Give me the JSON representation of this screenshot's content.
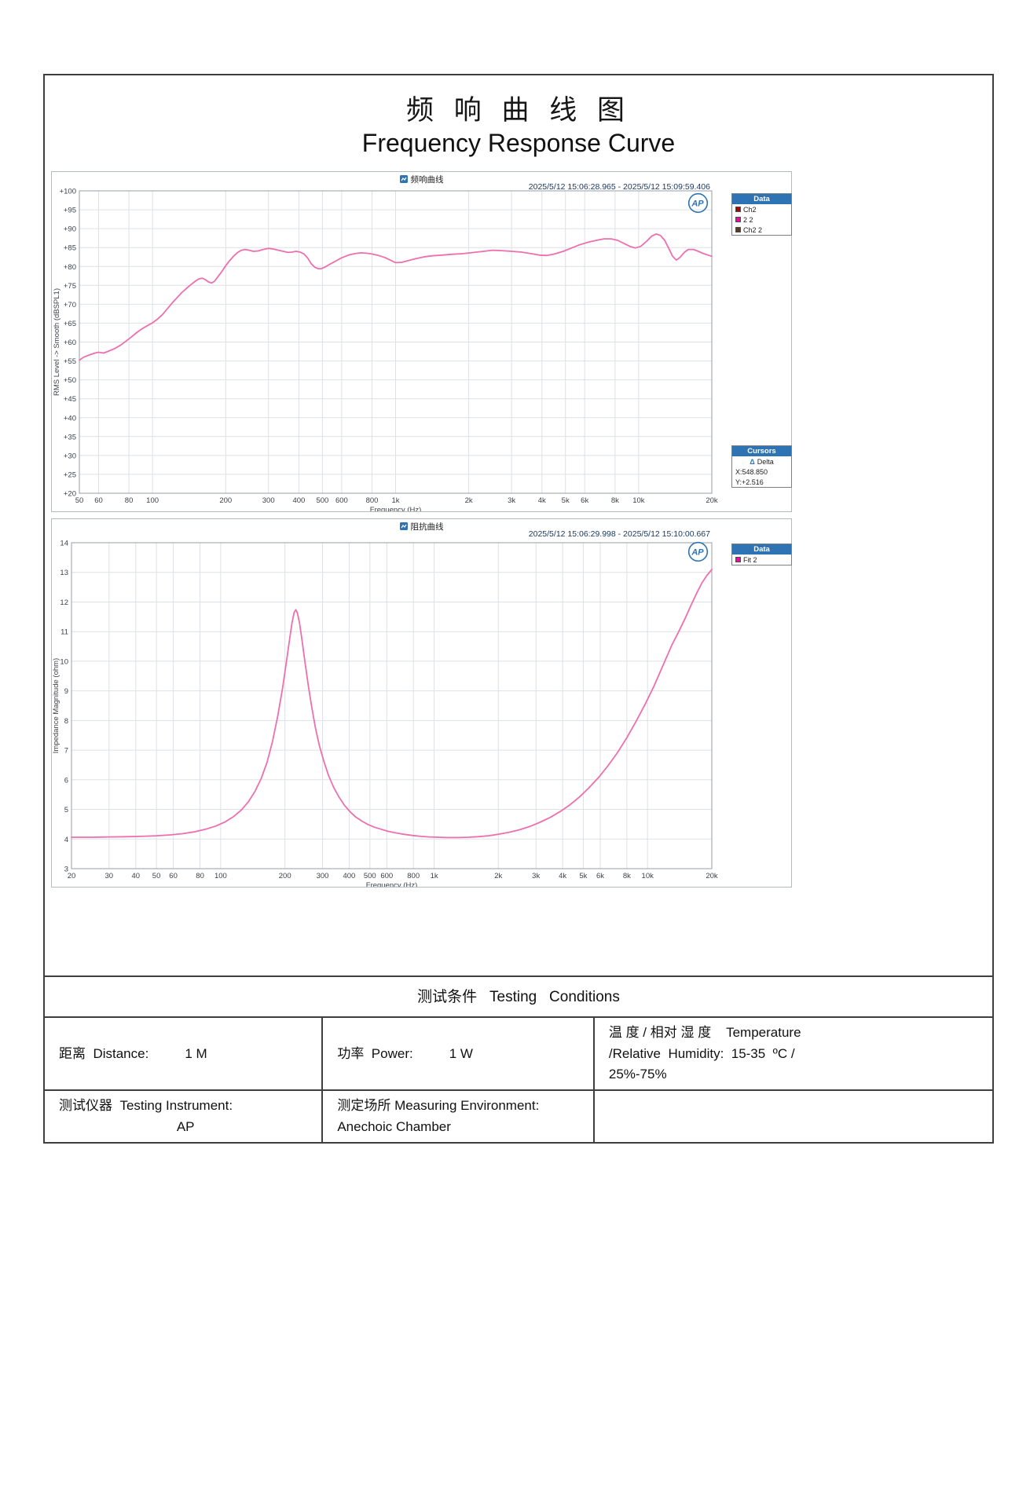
{
  "doc": {
    "title_zh": "频 响 曲 线 图",
    "title_en": "Frequency Response Curve"
  },
  "chart_data": [
    {
      "type": "line",
      "window_title": "频响曲线",
      "timestamp": "2025/5/12 15:06:28.965 - 2025/5/12 15:09:59.406",
      "logo_text": "AP",
      "xlabel": "Frequency (Hz)",
      "ylabel": "RMS Level -> Smooth (dBSPL1)",
      "xscale": "log",
      "xlim": [
        50,
        20000
      ],
      "ylim": [
        20,
        100
      ],
      "ystep": 5,
      "y_prefix_plus": true,
      "grid": true,
      "xticks": [
        [
          50,
          "50"
        ],
        [
          60,
          "60"
        ],
        [
          80,
          "80"
        ],
        [
          100,
          "100"
        ],
        [
          200,
          "200"
        ],
        [
          300,
          "300"
        ],
        [
          400,
          "400"
        ],
        [
          500,
          "500"
        ],
        [
          600,
          "600"
        ],
        [
          800,
          "800"
        ],
        [
          1000,
          "1k"
        ],
        [
          2000,
          "2k"
        ],
        [
          3000,
          "3k"
        ],
        [
          4000,
          "4k"
        ],
        [
          5000,
          "5k"
        ],
        [
          6000,
          "6k"
        ],
        [
          8000,
          "8k"
        ],
        [
          10000,
          "10k"
        ],
        [
          20000,
          "20k"
        ]
      ],
      "legend": {
        "title": "Data",
        "position": "right-top",
        "entries": [
          {
            "label": "Ch2",
            "color": "#b00000"
          },
          {
            "label": "2 2",
            "color": "#ff00a0"
          },
          {
            "label": "Ch2 2",
            "color": "#5f3a18"
          }
        ]
      },
      "cursors": {
        "title": "Cursors",
        "delta": "Delta",
        "x": "X:548.850",
        "y": "Y:+2.516"
      },
      "series": [
        {
          "name": "2 2",
          "color": "#ee6fae",
          "points": [
            [
              50,
              55.2
            ],
            [
              52,
              56.0
            ],
            [
              55,
              56.6
            ],
            [
              58,
              57.1
            ],
            [
              60,
              57.3
            ],
            [
              63,
              57.1
            ],
            [
              66,
              57.6
            ],
            [
              70,
              58.3
            ],
            [
              74,
              59.2
            ],
            [
              78,
              60.3
            ],
            [
              82,
              61.4
            ],
            [
              86,
              62.5
            ],
            [
              90,
              63.4
            ],
            [
              95,
              64.3
            ],
            [
              100,
              65.1
            ],
            [
              105,
              66.1
            ],
            [
              110,
              67.3
            ],
            [
              115,
              68.8
            ],
            [
              120,
              70.2
            ],
            [
              126,
              71.7
            ],
            [
              132,
              73.1
            ],
            [
              138,
              74.2
            ],
            [
              144,
              75.2
            ],
            [
              150,
              76.1
            ],
            [
              155,
              76.7
            ],
            [
              160,
              76.9
            ],
            [
              165,
              76.5
            ],
            [
              170,
              75.9
            ],
            [
              175,
              75.6
            ],
            [
              180,
              76.1
            ],
            [
              186,
              77.3
            ],
            [
              193,
              78.7
            ],
            [
              200,
              80.2
            ],
            [
              208,
              81.6
            ],
            [
              216,
              82.8
            ],
            [
              224,
              83.7
            ],
            [
              232,
              84.3
            ],
            [
              240,
              84.5
            ],
            [
              250,
              84.3
            ],
            [
              260,
              84.0
            ],
            [
              272,
              84.1
            ],
            [
              285,
              84.5
            ],
            [
              300,
              84.8
            ],
            [
              315,
              84.6
            ],
            [
              330,
              84.3
            ],
            [
              345,
              84.0
            ],
            [
              360,
              83.7
            ],
            [
              375,
              83.8
            ],
            [
              390,
              84.0
            ],
            [
              405,
              83.8
            ],
            [
              420,
              83.3
            ],
            [
              435,
              82.2
            ],
            [
              450,
              80.7
            ],
            [
              465,
              79.8
            ],
            [
              480,
              79.4
            ],
            [
              495,
              79.4
            ],
            [
              515,
              79.9
            ],
            [
              540,
              80.7
            ],
            [
              570,
              81.5
            ],
            [
              600,
              82.3
            ],
            [
              640,
              83.0
            ],
            [
              680,
              83.4
            ],
            [
              720,
              83.6
            ],
            [
              760,
              83.5
            ],
            [
              800,
              83.3
            ],
            [
              850,
              82.9
            ],
            [
              900,
              82.4
            ],
            [
              950,
              81.7
            ],
            [
              1000,
              81.0
            ],
            [
              1060,
              81.1
            ],
            [
              1120,
              81.5
            ],
            [
              1200,
              82.0
            ],
            [
              1300,
              82.5
            ],
            [
              1400,
              82.8
            ],
            [
              1550,
              83.0
            ],
            [
              1700,
              83.2
            ],
            [
              1900,
              83.4
            ],
            [
              2100,
              83.7
            ],
            [
              2300,
              84.0
            ],
            [
              2500,
              84.3
            ],
            [
              2700,
              84.2
            ],
            [
              3000,
              84.0
            ],
            [
              3300,
              83.8
            ],
            [
              3600,
              83.4
            ],
            [
              3900,
              83.0
            ],
            [
              4200,
              82.9
            ],
            [
              4500,
              83.3
            ],
            [
              4900,
              84.0
            ],
            [
              5300,
              84.9
            ],
            [
              5700,
              85.7
            ],
            [
              6200,
              86.4
            ],
            [
              6700,
              86.9
            ],
            [
              7200,
              87.3
            ],
            [
              7700,
              87.3
            ],
            [
              8200,
              86.9
            ],
            [
              8700,
              86.1
            ],
            [
              9200,
              85.3
            ],
            [
              9700,
              84.9
            ],
            [
              10200,
              85.3
            ],
            [
              10800,
              86.7
            ],
            [
              11300,
              88.0
            ],
            [
              11800,
              88.6
            ],
            [
              12300,
              88.2
            ],
            [
              12800,
              86.9
            ],
            [
              13300,
              84.8
            ],
            [
              13800,
              82.7
            ],
            [
              14300,
              81.7
            ],
            [
              14800,
              82.4
            ],
            [
              15400,
              83.7
            ],
            [
              16000,
              84.5
            ],
            [
              16800,
              84.5
            ],
            [
              17600,
              84.0
            ],
            [
              18500,
              83.4
            ],
            [
              19300,
              83.0
            ],
            [
              20000,
              82.7
            ]
          ]
        }
      ]
    },
    {
      "type": "line",
      "window_title": "阻抗曲线",
      "timestamp": "2025/5/12 15:06:29.998 - 2025/5/12 15:10:00.667",
      "logo_text": "AP",
      "xlabel": "Frequency (Hz)",
      "ylabel": "Impedance Magnitude (ohm)",
      "xscale": "log",
      "xlim": [
        20,
        20000
      ],
      "ylim": [
        3,
        14
      ],
      "ystep": 1,
      "y_prefix_plus": false,
      "grid": true,
      "xticks": [
        [
          20,
          "20"
        ],
        [
          30,
          "30"
        ],
        [
          40,
          "40"
        ],
        [
          50,
          "50"
        ],
        [
          60,
          "60"
        ],
        [
          80,
          "80"
        ],
        [
          100,
          "100"
        ],
        [
          200,
          "200"
        ],
        [
          300,
          "300"
        ],
        [
          400,
          "400"
        ],
        [
          500,
          "500"
        ],
        [
          600,
          "600"
        ],
        [
          800,
          "800"
        ],
        [
          1000,
          "1k"
        ],
        [
          2000,
          "2k"
        ],
        [
          3000,
          "3k"
        ],
        [
          4000,
          "4k"
        ],
        [
          5000,
          "5k"
        ],
        [
          6000,
          "6k"
        ],
        [
          8000,
          "8k"
        ],
        [
          10000,
          "10k"
        ],
        [
          20000,
          "20k"
        ]
      ],
      "legend": {
        "title": "Data",
        "position": "right-top",
        "entries": [
          {
            "label": "Fit 2",
            "color": "#ff00a0"
          }
        ]
      },
      "series": [
        {
          "name": "Fit 2",
          "color": "#ee6fae",
          "points": [
            [
              20,
              4.06
            ],
            [
              25,
              4.06
            ],
            [
              30,
              4.07
            ],
            [
              36,
              4.08
            ],
            [
              42,
              4.09
            ],
            [
              50,
              4.11
            ],
            [
              58,
              4.14
            ],
            [
              66,
              4.18
            ],
            [
              75,
              4.24
            ],
            [
              85,
              4.33
            ],
            [
              95,
              4.44
            ],
            [
              105,
              4.58
            ],
            [
              115,
              4.76
            ],
            [
              125,
              4.98
            ],
            [
              135,
              5.26
            ],
            [
              145,
              5.62
            ],
            [
              155,
              6.05
            ],
            [
              165,
              6.6
            ],
            [
              175,
              7.3
            ],
            [
              185,
              8.15
            ],
            [
              195,
              9.1
            ],
            [
              203,
              9.95
            ],
            [
              210,
              10.7
            ],
            [
              216,
              11.3
            ],
            [
              221,
              11.65
            ],
            [
              225,
              11.74
            ],
            [
              229,
              11.62
            ],
            [
              234,
              11.3
            ],
            [
              240,
              10.75
            ],
            [
              248,
              10.0
            ],
            [
              257,
              9.2
            ],
            [
              267,
              8.45
            ],
            [
              278,
              7.75
            ],
            [
              290,
              7.15
            ],
            [
              305,
              6.6
            ],
            [
              320,
              6.15
            ],
            [
              338,
              5.75
            ],
            [
              358,
              5.42
            ],
            [
              380,
              5.14
            ],
            [
              405,
              4.91
            ],
            [
              430,
              4.74
            ],
            [
              460,
              4.6
            ],
            [
              490,
              4.49
            ],
            [
              525,
              4.4
            ],
            [
              565,
              4.33
            ],
            [
              610,
              4.26
            ],
            [
              660,
              4.21
            ],
            [
              720,
              4.16
            ],
            [
              790,
              4.12
            ],
            [
              870,
              4.09
            ],
            [
              950,
              4.07
            ],
            [
              1050,
              4.06
            ],
            [
              1150,
              4.05
            ],
            [
              1300,
              4.05
            ],
            [
              1450,
              4.06
            ],
            [
              1600,
              4.08
            ],
            [
              1800,
              4.11
            ],
            [
              2000,
              4.16
            ],
            [
              2250,
              4.23
            ],
            [
              2500,
              4.31
            ],
            [
              2800,
              4.42
            ],
            [
              3100,
              4.55
            ],
            [
              3500,
              4.73
            ],
            [
              3900,
              4.93
            ],
            [
              4300,
              5.14
            ],
            [
              4800,
              5.42
            ],
            [
              5300,
              5.72
            ],
            [
              5900,
              6.08
            ],
            [
              6500,
              6.46
            ],
            [
              7200,
              6.9
            ],
            [
              8000,
              7.42
            ],
            [
              8800,
              7.95
            ],
            [
              9700,
              8.52
            ],
            [
              10700,
              9.15
            ],
            [
              11800,
              9.85
            ],
            [
              13000,
              10.55
            ],
            [
              14000,
              11.0
            ],
            [
              15000,
              11.45
            ],
            [
              16000,
              11.9
            ],
            [
              17000,
              12.3
            ],
            [
              18000,
              12.65
            ],
            [
              19000,
              12.9
            ],
            [
              20000,
              13.1
            ]
          ]
        }
      ]
    }
  ],
  "conditions": {
    "header": "测试条件   Testing   Conditions",
    "distance_label": "距离  Distance:",
    "distance_value": "1 M",
    "power_label": "功率  Power:",
    "power_value": "1 W",
    "temp_lines": [
      "温 度 / 相对 湿 度    Temperature",
      "/Relative  Humidity:  15-35  ºC /",
      "25%-75%"
    ],
    "instrument_label": "测试仪器  Testing Instrument:",
    "instrument_value": "AP",
    "environment_label": "测定场所 Measuring Environment:",
    "environment_value": "Anechoic Chamber"
  }
}
